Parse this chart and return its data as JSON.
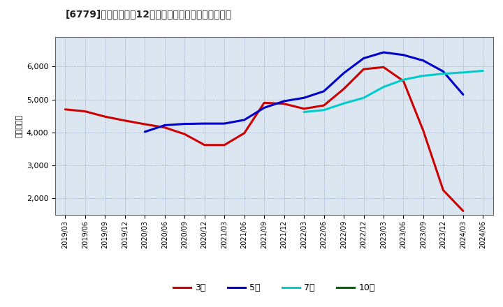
{
  "title": "[6779]　当期純利益12か月移動合計の標準偏差の推移",
  "ylabel": "（百万円）",
  "background_color": "#ffffff",
  "plot_bg_color": "#dce6f0",
  "grid_color": "#aaaacc",
  "ylim": [
    1500,
    6900
  ],
  "yticks": [
    2000,
    3000,
    4000,
    5000,
    6000
  ],
  "x_labels": [
    "2019/03",
    "2019/06",
    "2019/09",
    "2019/12",
    "2020/03",
    "2020/06",
    "2020/09",
    "2020/12",
    "2021/03",
    "2021/06",
    "2021/09",
    "2021/12",
    "2022/03",
    "2022/06",
    "2022/09",
    "2022/12",
    "2023/03",
    "2023/06",
    "2023/09",
    "2023/12",
    "2024/03",
    "2024/06"
  ],
  "series": {
    "3year": {
      "color": "#cc0000",
      "label": "3年",
      "data": [
        4700,
        4640,
        4480,
        4360,
        4250,
        4150,
        3950,
        3620,
        3620,
        3980,
        4900,
        4870,
        4720,
        4820,
        5320,
        5920,
        5980,
        5560,
        4050,
        2250,
        1620,
        null
      ]
    },
    "5year": {
      "color": "#0000cc",
      "label": "5年",
      "data": [
        null,
        null,
        null,
        null,
        4020,
        4220,
        4260,
        4270,
        4270,
        4380,
        4750,
        4950,
        5050,
        5250,
        5800,
        6250,
        6430,
        6350,
        6180,
        5850,
        5150,
        null
      ]
    },
    "7year": {
      "color": "#00cccc",
      "label": "7年",
      "data": [
        null,
        null,
        null,
        null,
        null,
        null,
        null,
        null,
        null,
        null,
        null,
        null,
        4620,
        4680,
        4880,
        5050,
        5380,
        5600,
        5720,
        5780,
        5820,
        5870
      ]
    },
    "10year": {
      "color": "#006600",
      "label": "10年",
      "data": [
        null,
        null,
        null,
        null,
        null,
        null,
        null,
        null,
        null,
        null,
        null,
        null,
        null,
        null,
        null,
        null,
        null,
        null,
        null,
        null,
        null,
        null
      ]
    }
  }
}
